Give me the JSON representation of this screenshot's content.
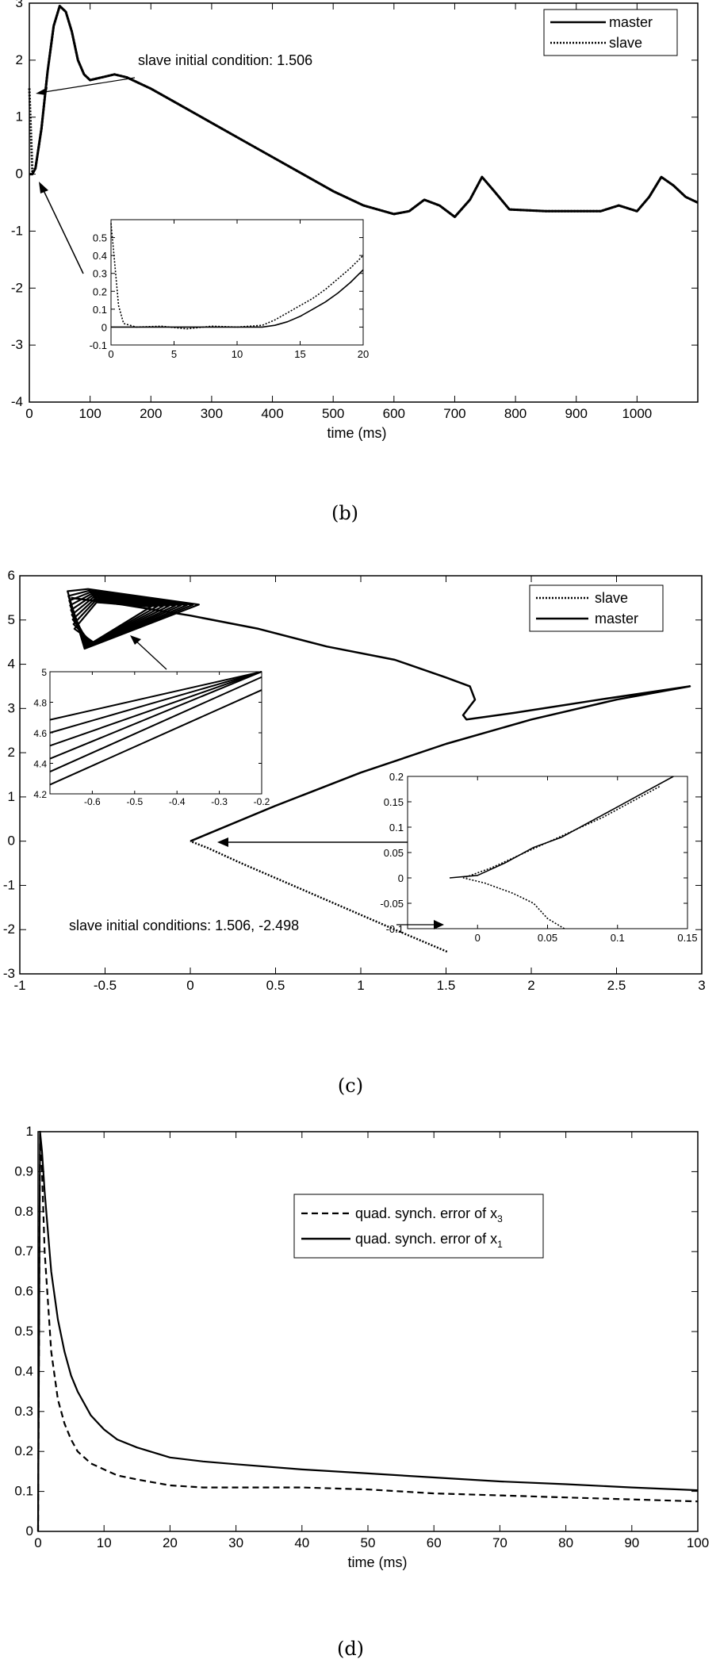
{
  "panels": {
    "b": {
      "caption": "(b)"
    },
    "c": {
      "caption": "(c)"
    },
    "d": {
      "caption": "(d)"
    }
  },
  "chart_data": [
    {
      "id": "b",
      "type": "line",
      "xlabel": "time (ms)",
      "ylabel": "",
      "xlim": [
        0,
        1100
      ],
      "ylim": [
        -4,
        3
      ],
      "xticks": [
        0,
        100,
        200,
        300,
        400,
        500,
        600,
        700,
        800,
        900,
        1000
      ],
      "yticks": [
        -4,
        -3,
        -2,
        -1,
        0,
        1,
        2,
        3
      ],
      "legend": {
        "position": "top-right",
        "entries": [
          {
            "label": "master",
            "style": "solid"
          },
          {
            "label": "slave",
            "style": "dotted"
          }
        ]
      },
      "annotation": "slave initial condition: 1.506",
      "series": [
        {
          "name": "master",
          "style": "solid",
          "x": [
            0,
            5,
            10,
            20,
            30,
            40,
            50,
            60,
            70,
            80,
            90,
            100,
            120,
            140,
            160,
            180,
            200,
            250,
            300,
            350,
            400,
            450,
            500,
            550,
            600,
            625,
            650,
            675,
            700,
            725,
            745,
            765,
            790,
            850,
            900,
            940,
            970,
            1000,
            1020,
            1040,
            1060,
            1080,
            1100
          ],
          "y": [
            0,
            0,
            0.1,
            0.8,
            1.8,
            2.6,
            2.95,
            2.85,
            2.5,
            2.0,
            1.75,
            1.65,
            1.7,
            1.75,
            1.7,
            1.6,
            1.5,
            1.2,
            0.9,
            0.6,
            0.3,
            0,
            -0.3,
            -0.55,
            -0.7,
            -0.65,
            -0.45,
            -0.55,
            -0.75,
            -0.45,
            -0.05,
            -0.3,
            -0.62,
            -0.65,
            -0.65,
            -0.65,
            -0.55,
            -0.65,
            -0.4,
            -0.05,
            -0.2,
            -0.4,
            -0.5
          ]
        },
        {
          "name": "slave",
          "style": "dotted",
          "x": [
            0,
            5,
            10,
            20,
            30,
            40,
            50,
            60,
            70,
            80,
            90,
            100,
            120,
            140,
            160,
            180,
            200,
            250,
            300,
            350,
            400,
            450,
            500,
            550,
            600,
            625,
            650,
            675,
            700,
            725,
            745,
            765,
            790,
            850,
            900,
            940,
            970,
            1000,
            1020,
            1040,
            1060,
            1080,
            1100
          ],
          "y": [
            1.506,
            0.05,
            0.1,
            0.8,
            1.8,
            2.6,
            2.95,
            2.85,
            2.5,
            2.0,
            1.75,
            1.65,
            1.7,
            1.75,
            1.7,
            1.6,
            1.5,
            1.2,
            0.9,
            0.6,
            0.3,
            0,
            -0.3,
            -0.55,
            -0.7,
            -0.65,
            -0.45,
            -0.55,
            -0.75,
            -0.45,
            -0.05,
            -0.3,
            -0.62,
            -0.65,
            -0.65,
            -0.65,
            -0.55,
            -0.65,
            -0.4,
            -0.05,
            -0.2,
            -0.4,
            -0.5
          ]
        }
      ],
      "inset": {
        "xlim": [
          0,
          20
        ],
        "ylim": [
          -0.1,
          0.6
        ],
        "xticks": [
          0,
          5,
          10,
          15,
          20
        ],
        "yticks": [
          -0.1,
          0,
          0.1,
          0.2,
          0.3,
          0.4,
          0.5
        ],
        "series": [
          {
            "name": "master",
            "style": "solid",
            "x": [
              0,
              12,
              13,
              14,
              15,
              16,
              17,
              18,
              19,
              20
            ],
            "y": [
              0,
              0,
              0.01,
              0.03,
              0.06,
              0.1,
              0.14,
              0.19,
              0.25,
              0.32
            ]
          },
          {
            "name": "slave",
            "style": "dotted",
            "x": [
              0,
              0.3,
              0.6,
              1,
              2,
              4,
              6,
              8,
              10,
              12,
              13,
              14,
              15,
              16,
              17,
              18,
              19,
              20
            ],
            "y": [
              0.58,
              0.35,
              0.12,
              0.02,
              0,
              0.005,
              -0.01,
              0.005,
              0,
              0.01,
              0.04,
              0.08,
              0.12,
              0.16,
              0.21,
              0.27,
              0.33,
              0.4
            ]
          }
        ]
      }
    },
    {
      "id": "c",
      "type": "line",
      "xlabel": "",
      "ylabel": "",
      "xlim": [
        -1,
        3
      ],
      "ylim": [
        -3,
        6
      ],
      "xticks": [
        -1,
        -0.5,
        0,
        0.5,
        1,
        1.5,
        2,
        2.5,
        3
      ],
      "yticks": [
        -3,
        -2,
        -1,
        0,
        1,
        2,
        3,
        4,
        5,
        6
      ],
      "legend": {
        "position": "top-right",
        "entries": [
          {
            "label": "slave",
            "style": "dotted"
          },
          {
            "label": "master",
            "style": "solid"
          }
        ]
      },
      "annotation": "slave initial conditions: 1.506, -2.498",
      "series": [
        {
          "name": "master",
          "style": "solid",
          "x": [
            0,
            0.5,
            1.0,
            1.5,
            2.0,
            2.5,
            2.93,
            2.4,
            1.9,
            1.62,
            1.6,
            1.67,
            1.64,
            1.5,
            1.2,
            0.8,
            0.4,
            0.0,
            -0.4,
            -0.7
          ],
          "y": [
            0,
            0.8,
            1.55,
            2.2,
            2.75,
            3.2,
            3.5,
            3.2,
            2.9,
            2.75,
            2.85,
            3.2,
            3.5,
            3.7,
            4.1,
            4.4,
            4.8,
            5.1,
            5.35,
            5.5
          ]
        },
        {
          "name": "slave",
          "style": "dotted",
          "x": [
            1.506,
            1.2,
            0.9,
            0.6,
            0.3,
            0.1,
            0
          ],
          "y": [
            -2.498,
            -2.0,
            -1.5,
            -1.0,
            -0.5,
            -0.15,
            0
          ]
        }
      ],
      "insets": [
        {
          "xlim": [
            -0.7,
            -0.2
          ],
          "ylim": [
            4.2,
            5.0
          ],
          "xticks": [
            -0.6,
            -0.5,
            -0.4,
            -0.3,
            -0.2
          ],
          "yticks": [
            4.2,
            4.4,
            4.6,
            4.8,
            5
          ]
        },
        {
          "xlim": [
            -0.05,
            0.15
          ],
          "ylim": [
            -0.1,
            0.2
          ],
          "xticks": [
            0,
            0.05,
            0.1,
            0.15
          ],
          "yticks": [
            -0.1,
            -0.05,
            0,
            0.05,
            0.1,
            0.15,
            0.2
          ],
          "series": [
            {
              "name": "master",
              "style": "solid",
              "x": [
                -0.02,
                0,
                0.02,
                0.04,
                0.06,
                0.08,
                0.1,
                0.12,
                0.14
              ],
              "y": [
                0,
                0.005,
                0.03,
                0.06,
                0.08,
                0.11,
                0.14,
                0.17,
                0.2
              ]
            },
            {
              "name": "slave",
              "style": "dotted",
              "x": [
                0.062,
                0.05,
                0.04,
                0.025,
                0.015,
                0.005,
                -0.01,
                0.01,
                0.03,
                0.05,
                0.07,
                0.09,
                0.11,
                0.13
              ],
              "y": [
                -0.1,
                -0.08,
                -0.05,
                -0.03,
                -0.02,
                -0.01,
                0,
                0.02,
                0.045,
                0.07,
                0.095,
                0.12,
                0.15,
                0.18
              ]
            }
          ]
        }
      ]
    },
    {
      "id": "d",
      "type": "line",
      "xlabel": "time (ms)",
      "ylabel": "",
      "xlim": [
        0,
        100
      ],
      "ylim": [
        0,
        1
      ],
      "xticks": [
        0,
        10,
        20,
        30,
        40,
        50,
        60,
        70,
        80,
        90,
        100
      ],
      "yticks": [
        0,
        0.1,
        0.2,
        0.3,
        0.4,
        0.5,
        0.6,
        0.7,
        0.8,
        0.9,
        1
      ],
      "legend": {
        "position": "top-right",
        "entries": [
          {
            "label": "quad. synch. error of x",
            "sub": "3",
            "style": "dashed"
          },
          {
            "label": "quad. synch. error of x",
            "sub": "1",
            "style": "solid"
          }
        ]
      },
      "series": [
        {
          "name": "quad. synch. error of x1",
          "style": "solid",
          "x": [
            0,
            0.3,
            0.6,
            1,
            2,
            3,
            4,
            5,
            6,
            8,
            10,
            12,
            15,
            20,
            25,
            30,
            40,
            50,
            60,
            70,
            80,
            90,
            100
          ],
          "y": [
            0,
            1.0,
            0.95,
            0.85,
            0.65,
            0.53,
            0.45,
            0.39,
            0.35,
            0.29,
            0.255,
            0.23,
            0.21,
            0.185,
            0.175,
            0.168,
            0.155,
            0.145,
            0.135,
            0.125,
            0.118,
            0.11,
            0.103
          ]
        },
        {
          "name": "quad. synch. error of x3",
          "style": "dashed",
          "x": [
            0,
            0.3,
            0.6,
            1,
            2,
            3,
            4,
            5,
            6,
            8,
            10,
            12,
            15,
            20,
            25,
            30,
            40,
            50,
            60,
            70,
            80,
            90,
            100
          ],
          "y": [
            0,
            1.0,
            0.9,
            0.7,
            0.45,
            0.33,
            0.27,
            0.23,
            0.2,
            0.17,
            0.155,
            0.14,
            0.13,
            0.115,
            0.11,
            0.11,
            0.11,
            0.105,
            0.095,
            0.09,
            0.085,
            0.08,
            0.075
          ]
        }
      ]
    }
  ]
}
